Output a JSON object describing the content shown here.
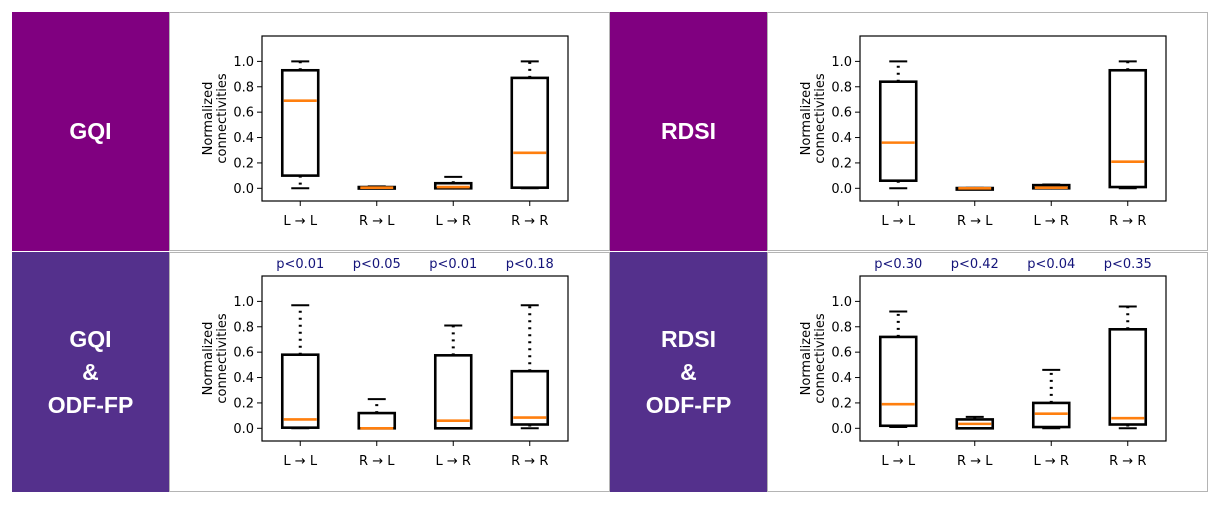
{
  "colors": {
    "gqi_label_bg": "#800080",
    "rdsi_label_bg": "#800080",
    "odf_label_bg": "#54308c",
    "median": "#ff7f0e",
    "pvalue_text": "#14147a",
    "panel_border": "#b4b4b4"
  },
  "labels": [
    {
      "text": "GQI"
    },
    {
      "text": "RDSI"
    },
    {
      "text": "GQI\n&\nODF-FP"
    },
    {
      "text": "RDSI\n&\nODF-FP"
    }
  ],
  "chart_data": [
    {
      "type": "box",
      "panel": "GQI",
      "ylabel": "Normalized connectivities",
      "ylim": [
        -0.1,
        1.2
      ],
      "yticks": [
        "0.0",
        "0.2",
        "0.4",
        "0.6",
        "0.8",
        "1.0"
      ],
      "categories": [
        "L → L",
        "R → L",
        "L → R",
        "R → R"
      ],
      "pvalues": [],
      "boxes": [
        {
          "whislo": 0.0,
          "q1": 0.1,
          "med": 0.69,
          "q3": 0.93,
          "whishi": 1.0
        },
        {
          "whislo": 0.0,
          "q1": 0.0,
          "med": 0.005,
          "q3": 0.01,
          "whishi": 0.015
        },
        {
          "whislo": 0.0,
          "q1": 0.0,
          "med": 0.01,
          "q3": 0.04,
          "whishi": 0.09
        },
        {
          "whislo": 0.0,
          "q1": 0.005,
          "med": 0.28,
          "q3": 0.87,
          "whishi": 1.0
        }
      ]
    },
    {
      "type": "box",
      "panel": "RDSI",
      "ylabel": "Normalized connectivities",
      "ylim": [
        -0.1,
        1.2
      ],
      "yticks": [
        "0.0",
        "0.2",
        "0.4",
        "0.6",
        "0.8",
        "1.0"
      ],
      "categories": [
        "L → L",
        "R → L",
        "L → R",
        "R → R"
      ],
      "pvalues": [],
      "boxes": [
        {
          "whislo": 0.0,
          "q1": 0.06,
          "med": 0.36,
          "q3": 0.84,
          "whishi": 1.0
        },
        {
          "whislo": 0.0,
          "q1": 0.0,
          "med": 0.0,
          "q3": 0.002,
          "whishi": 0.003
        },
        {
          "whislo": 0.0,
          "q1": 0.0,
          "med": 0.005,
          "q3": 0.025,
          "whishi": 0.03
        },
        {
          "whislo": 0.0,
          "q1": 0.01,
          "med": 0.21,
          "q3": 0.93,
          "whishi": 1.0
        }
      ]
    },
    {
      "type": "box",
      "panel": "GQI & ODF-FP",
      "ylabel": "Normalized connectivities",
      "ylim": [
        -0.1,
        1.2
      ],
      "yticks": [
        "0.0",
        "0.2",
        "0.4",
        "0.6",
        "0.8",
        "1.0"
      ],
      "categories": [
        "L → L",
        "R → L",
        "L → R",
        "R → R"
      ],
      "pvalues": [
        "p<0.01",
        "p<0.05",
        "p<0.01",
        "p<0.18"
      ],
      "boxes": [
        {
          "whislo": 0.0,
          "q1": 0.005,
          "med": 0.07,
          "q3": 0.58,
          "whishi": 0.97
        },
        {
          "whislo": 0.0,
          "q1": 0.0,
          "med": 0.0,
          "q3": 0.12,
          "whishi": 0.23
        },
        {
          "whislo": 0.0,
          "q1": 0.0,
          "med": 0.06,
          "q3": 0.575,
          "whishi": 0.81
        },
        {
          "whislo": 0.0,
          "q1": 0.03,
          "med": 0.085,
          "q3": 0.45,
          "whishi": 0.97
        }
      ]
    },
    {
      "type": "box",
      "panel": "RDSI & ODF-FP",
      "ylabel": "Normalized connectivities",
      "ylim": [
        -0.1,
        1.2
      ],
      "yticks": [
        "0.0",
        "0.2",
        "0.4",
        "0.6",
        "0.8",
        "1.0"
      ],
      "categories": [
        "L → L",
        "R → L",
        "L → R",
        "R → R"
      ],
      "pvalues": [
        "p<0.30",
        "p<0.42",
        "p<0.04",
        "p<0.35"
      ],
      "boxes": [
        {
          "whislo": 0.01,
          "q1": 0.02,
          "med": 0.19,
          "q3": 0.72,
          "whishi": 0.92
        },
        {
          "whislo": 0.0,
          "q1": 0.0,
          "med": 0.035,
          "q3": 0.07,
          "whishi": 0.09
        },
        {
          "whislo": 0.0,
          "q1": 0.01,
          "med": 0.115,
          "q3": 0.2,
          "whishi": 0.46
        },
        {
          "whislo": 0.0,
          "q1": 0.03,
          "med": 0.08,
          "q3": 0.78,
          "whishi": 0.96
        }
      ]
    }
  ]
}
